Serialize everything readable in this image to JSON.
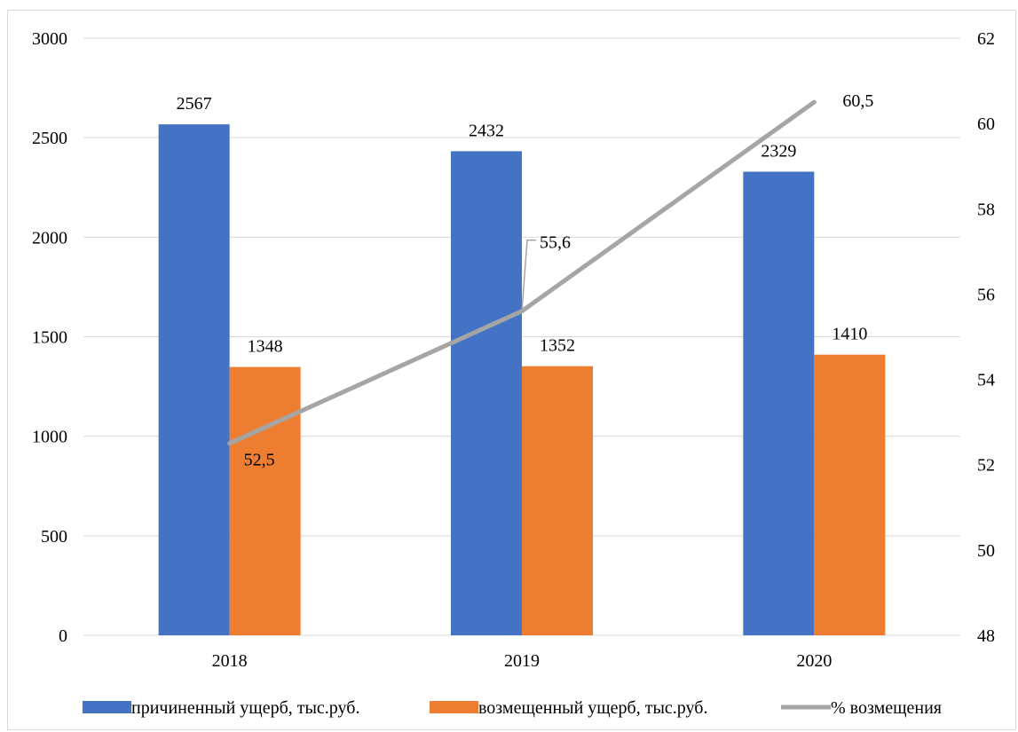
{
  "chart_data": {
    "type": "bar",
    "categories": [
      "2018",
      "2019",
      "2020"
    ],
    "series": [
      {
        "name": "причиненный ущерб, тыс.руб.",
        "type": "bar",
        "axis": "left",
        "color": "#4472C4",
        "values": [
          2567,
          2432,
          2329
        ]
      },
      {
        "name": "возмещенный ущерб, тыс.руб.",
        "type": "bar",
        "axis": "left",
        "color": "#ED7D31",
        "values": [
          1348,
          1352,
          1410
        ]
      },
      {
        "name": "% возмещения",
        "type": "line",
        "axis": "right",
        "color": "#A5A5A5",
        "values": [
          52.5,
          55.6,
          60.5
        ]
      }
    ],
    "point_labels": [
      "52,5",
      "55,6",
      "60,5"
    ],
    "left_axis": {
      "min": 0,
      "max": 3000,
      "ticks": [
        "0",
        "500",
        "1000",
        "1500",
        "2000",
        "2500",
        "3000"
      ]
    },
    "right_axis": {
      "min": 48,
      "max": 62,
      "ticks": [
        "48",
        "50",
        "52",
        "54",
        "56",
        "58",
        "60",
        "62"
      ]
    },
    "grid": true,
    "legend_position": "bottom"
  }
}
